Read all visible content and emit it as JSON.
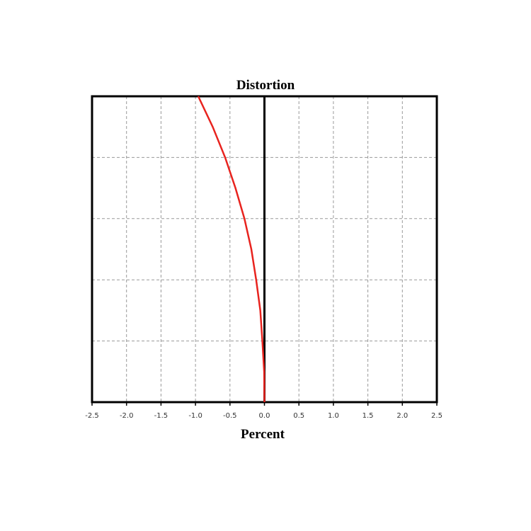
{
  "chart_data": {
    "type": "line",
    "title": "Distortion",
    "xlabel": "Percent",
    "series": [
      {
        "color": "#e8231e",
        "x": [
          0,
          -0.004,
          -0.03,
          -0.06,
          -0.12,
          -0.19,
          -0.29,
          -0.42,
          -0.57,
          -0.75,
          -0.96
        ],
        "y": [
          0,
          0.1,
          0.2,
          0.3,
          0.4,
          0.5,
          0.6,
          0.7,
          0.8,
          0.9,
          1
        ]
      }
    ],
    "xlim": [
      -2.5,
      2.5
    ],
    "xticks": [
      -2.5,
      {
        "value": -2,
        "label": "-2.0"
      },
      -1.5,
      {
        "value": -1,
        "label": "-1.0"
      },
      -0.5,
      {
        "value": 0,
        "label": "0.0"
      },
      0.5,
      {
        "value": 1,
        "label": "1.0"
      },
      1.5,
      {
        "value": 2,
        "label": "2.0"
      },
      2.5
    ],
    "ylim": [
      0,
      1
    ],
    "ygrid": [
      0.2,
      0.4,
      0.6,
      0.8
    ],
    "grid": true
  }
}
